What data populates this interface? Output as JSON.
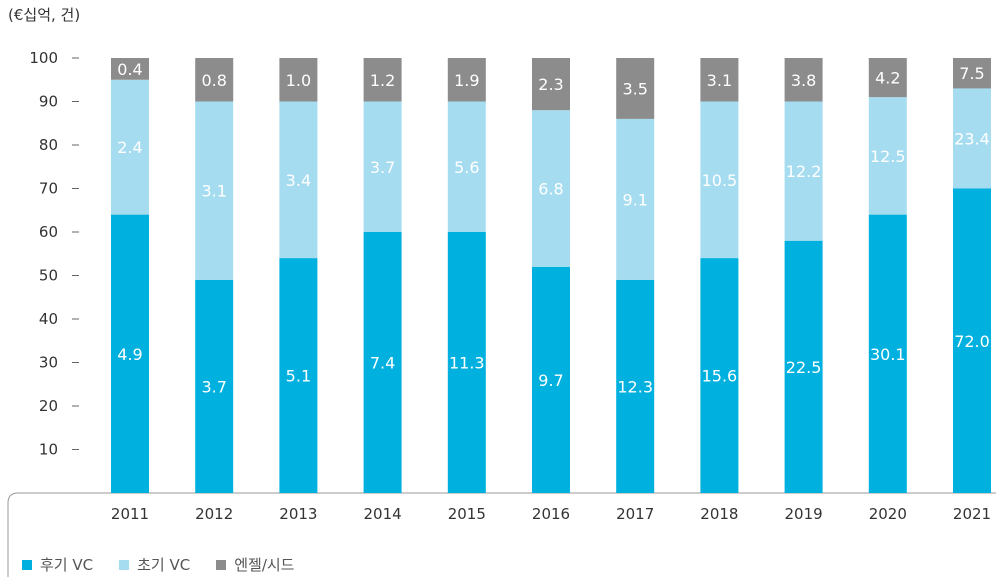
{
  "chart_data": {
    "type": "bar",
    "stacked": true,
    "unit_label": "(€십억, 건)",
    "categories": [
      "2011",
      "2012",
      "2013",
      "2014",
      "2015",
      "2016",
      "2017",
      "2018",
      "2019",
      "2020",
      "2021"
    ],
    "y_ticks": [
      10,
      20,
      30,
      40,
      50,
      60,
      70,
      80,
      90,
      100
    ],
    "ylim": [
      0,
      100
    ],
    "series": [
      {
        "name": "후기 VC",
        "color": "#00b0de",
        "label_color": "#ffffff",
        "share_percent": [
          64,
          49,
          54,
          60,
          60,
          52,
          49,
          54,
          58,
          64,
          70
        ],
        "labels": [
          "4.9",
          "3.7",
          "5.1",
          "7.4",
          "11.3",
          "9.7",
          "12.3",
          "15.6",
          "22.5",
          "30.1",
          "72.0"
        ]
      },
      {
        "name": "초기 VC",
        "color": "#a6dcf0",
        "label_color": "#ffffff",
        "share_percent": [
          31,
          41,
          36,
          30,
          30,
          36,
          37,
          36,
          32,
          27,
          23
        ],
        "labels": [
          "2.4",
          "3.1",
          "3.4",
          "3.7",
          "5.6",
          "6.8",
          "9.1",
          "10.5",
          "12.2",
          "12.5",
          "23.4"
        ]
      },
      {
        "name": "엔젤/시드",
        "color": "#8c8c8c",
        "label_color": "#ffffff",
        "share_percent": [
          5,
          10,
          10,
          10,
          10,
          12,
          14,
          10,
          10,
          9,
          7
        ],
        "labels": [
          "0.4",
          "0.8",
          "1.0",
          "1.2",
          "1.9",
          "2.3",
          "3.5",
          "3.1",
          "3.8",
          "4.2",
          "7.5"
        ]
      }
    ],
    "grid": false,
    "legend_position": "bottom-left"
  }
}
